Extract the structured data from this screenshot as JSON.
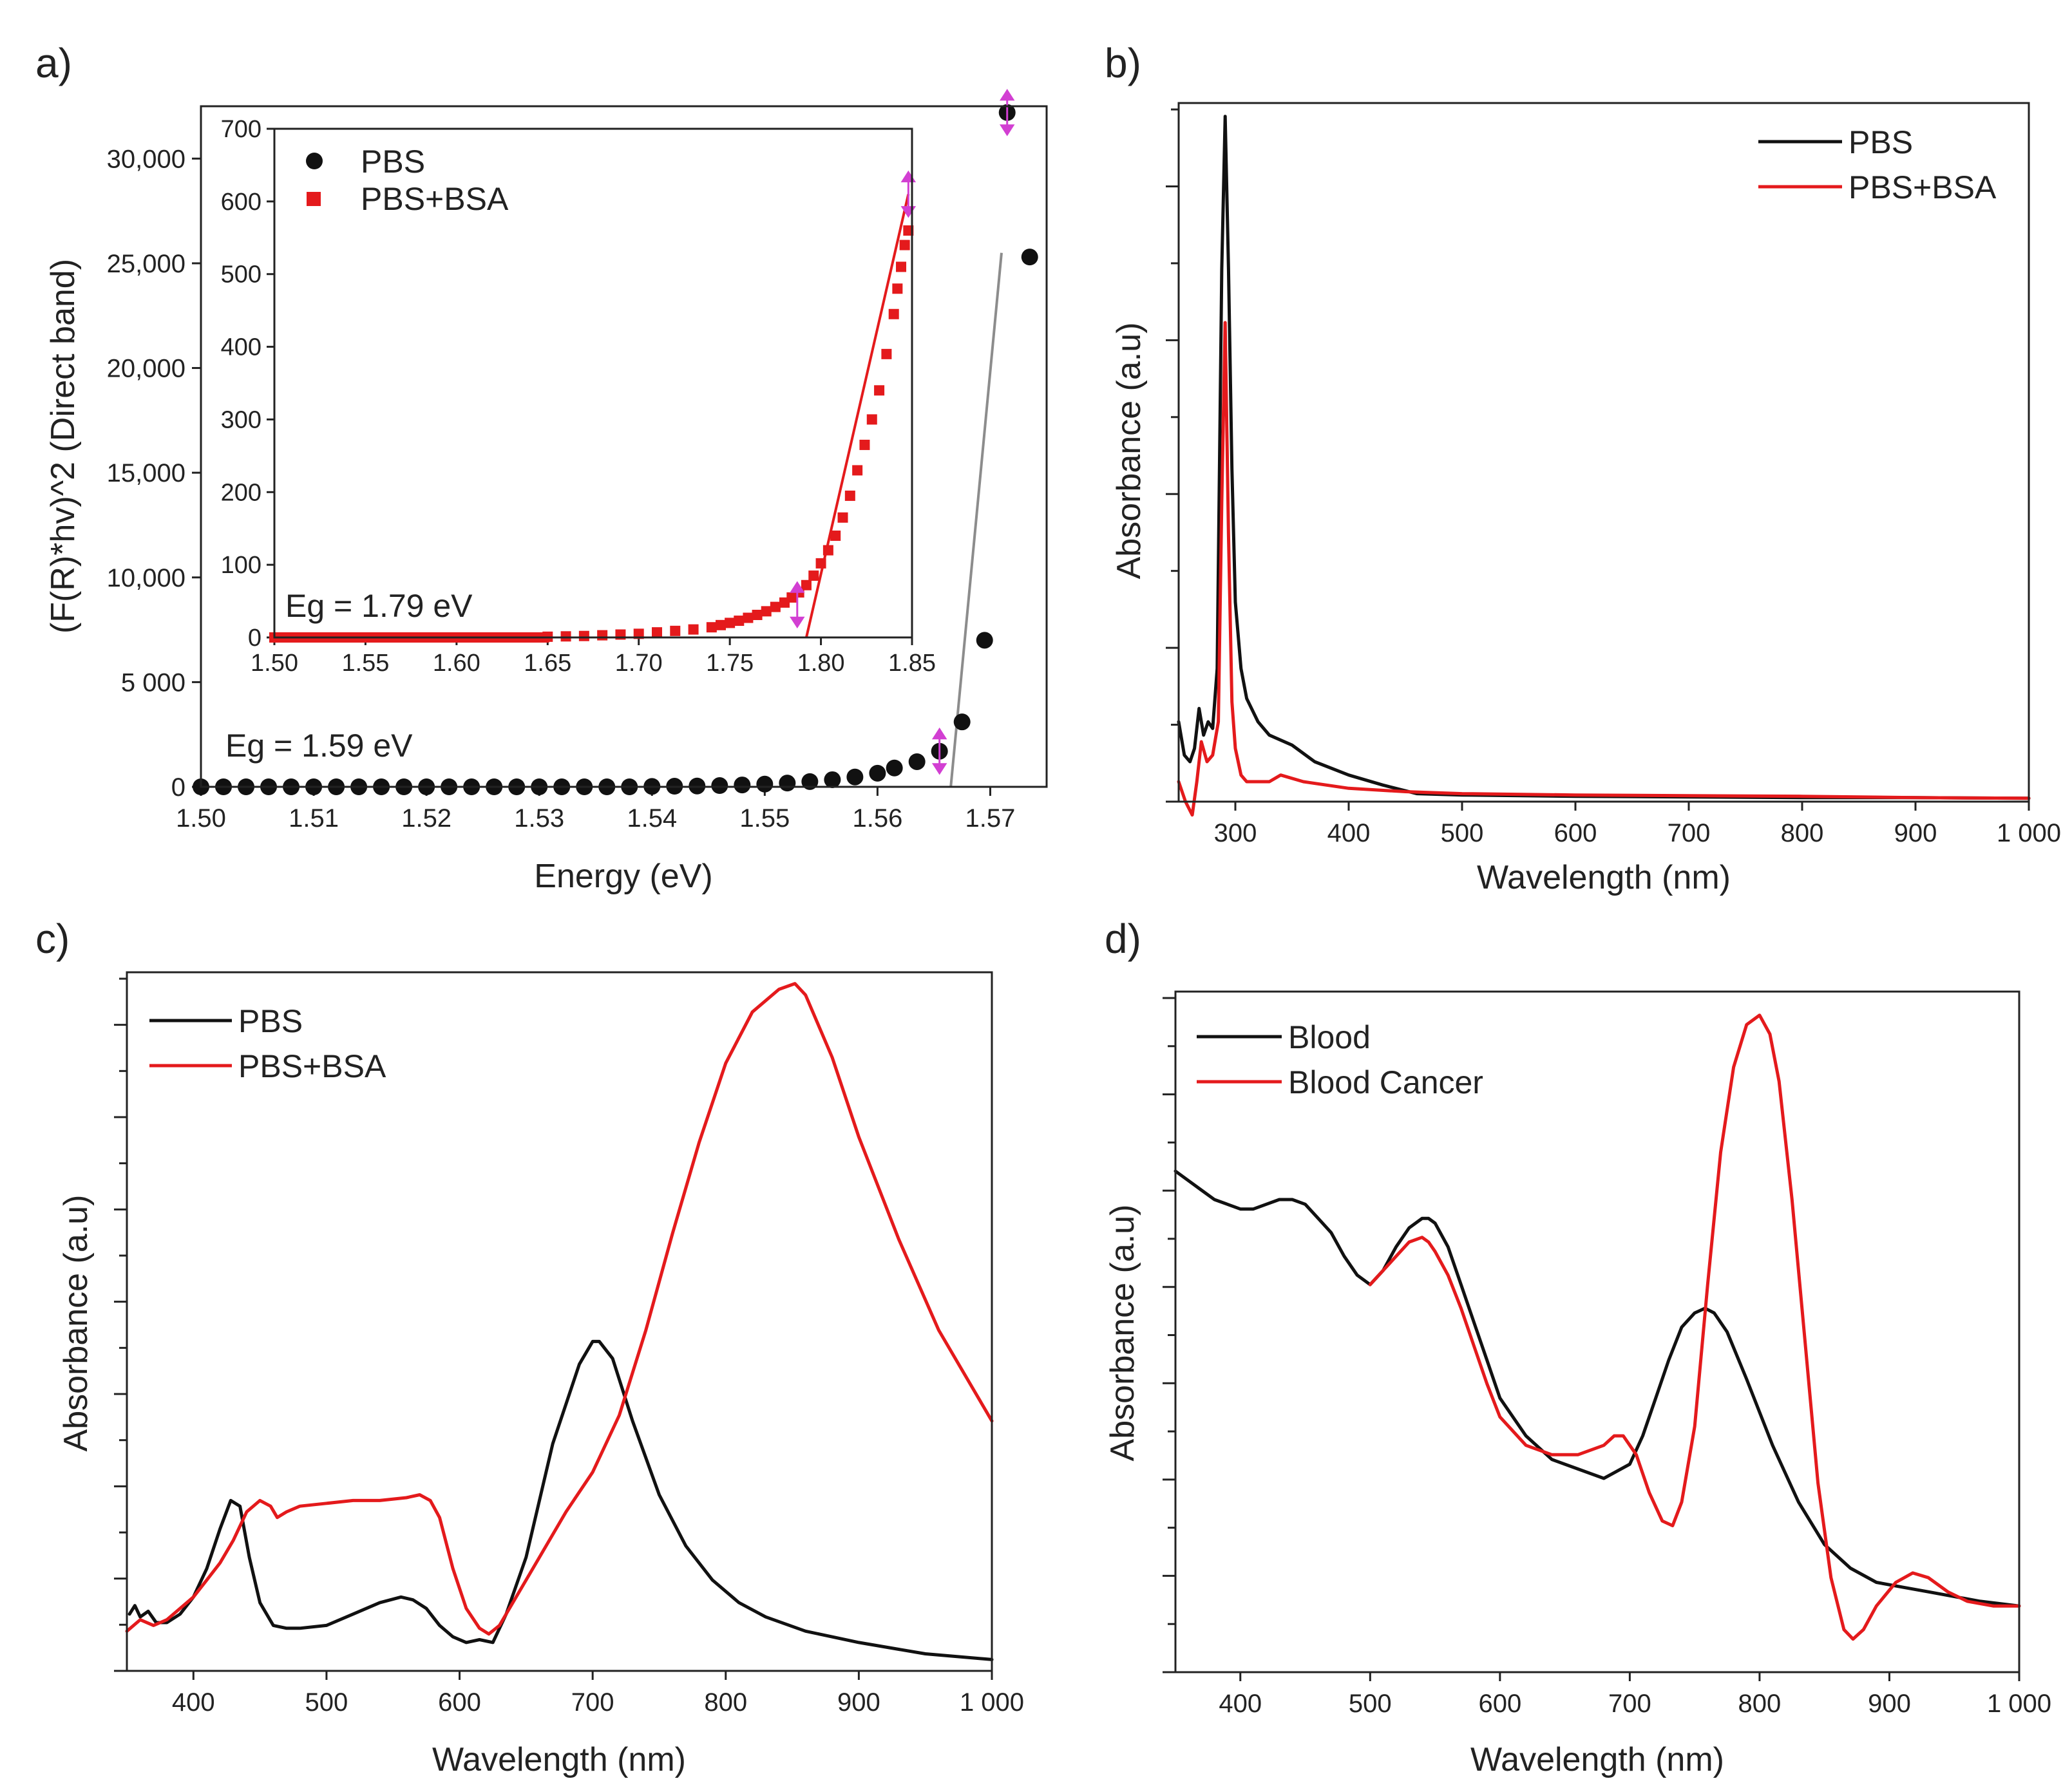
{
  "colors": {
    "black": "#111111",
    "red": "#e41a1c",
    "fit_gray": "#8c8c8c",
    "marker_magenta": "#d23fd2",
    "axis": "#222222"
  },
  "panels": [
    {
      "id": "a",
      "label": "a)",
      "type": "scatter",
      "xlabel": "Energy (eV)",
      "ylabel": "(F(R)*hv)^2 (Direct band)",
      "xlim": [
        1.5,
        1.575
      ],
      "ylim": [
        0,
        32500
      ],
      "xticks": [
        1.5,
        1.51,
        1.52,
        1.53,
        1.54,
        1.55,
        1.56,
        1.57
      ],
      "xtick_labels": [
        "1.50",
        "1.51",
        "1.52",
        "1.53",
        "1.54",
        "1.55",
        "1.56",
        "1.57"
      ],
      "yticks": [
        0,
        5000,
        10000,
        15000,
        20000,
        25000,
        30000
      ],
      "ytick_labels": [
        "0",
        "5 000",
        "10,000",
        "15,000",
        "20,000",
        "25,000",
        "30,000"
      ],
      "annotation": "Eg = 1.59 eV",
      "series": [
        {
          "name": "PBS",
          "color": "#111111",
          "x": [
            1.5,
            1.502,
            1.504,
            1.506,
            1.508,
            1.51,
            1.512,
            1.514,
            1.516,
            1.518,
            1.52,
            1.522,
            1.524,
            1.526,
            1.528,
            1.53,
            1.532,
            1.534,
            1.536,
            1.538,
            1.54,
            1.542,
            1.544,
            1.546,
            1.548,
            1.55,
            1.552,
            1.554,
            1.556,
            1.558,
            1.56,
            1.5615,
            1.5635,
            1.5655,
            1.5675,
            1.5695,
            1.5715,
            1.5735
          ],
          "y": [
            0,
            0,
            0,
            0,
            0,
            0,
            0,
            0,
            0,
            0,
            0,
            0,
            0,
            0,
            0,
            0,
            0,
            0,
            0,
            0,
            20,
            30,
            40,
            60,
            90,
            130,
            180,
            250,
            340,
            470,
            650,
            900,
            1200,
            1700,
            3100,
            7000,
            32200,
            25300
          ]
        }
      ],
      "fit_line": {
        "x": [
          1.5665,
          1.571
        ],
        "y": [
          0,
          25500
        ]
      },
      "markers": [
        {
          "x": 1.5655,
          "y": 1700
        },
        {
          "x": 1.5715,
          "y": 32200
        }
      ],
      "inset": {
        "xlim": [
          1.5,
          1.85
        ],
        "ylim": [
          0,
          700
        ],
        "xticks": [
          1.5,
          1.55,
          1.6,
          1.65,
          1.7,
          1.75,
          1.8,
          1.85
        ],
        "xtick_labels": [
          "1.50",
          "1.55",
          "1.60",
          "1.65",
          "1.70",
          "1.75",
          "1.80",
          "1.85"
        ],
        "yticks": [
          0,
          100,
          200,
          300,
          400,
          500,
          600,
          700
        ],
        "ytick_labels": [
          "0",
          "100",
          "200",
          "300",
          "400",
          "500",
          "600",
          "700"
        ],
        "annotation": "Eg = 1.79 eV",
        "legend": [
          {
            "name": "PBS",
            "color": "#111111",
            "marker": "circle"
          },
          {
            "name": "PBS+BSA",
            "color": "#e41a1c",
            "marker": "square"
          }
        ],
        "series": [
          {
            "name": "PBS+BSA",
            "color": "#e41a1c",
            "x": [
              1.65,
              1.66,
              1.67,
              1.68,
              1.69,
              1.7,
              1.71,
              1.72,
              1.73,
              1.74,
              1.745,
              1.75,
              1.755,
              1.76,
              1.765,
              1.77,
              1.775,
              1.78,
              1.784,
              1.788,
              1.792,
              1.796,
              1.8,
              1.804,
              1.808,
              1.812,
              1.816,
              1.82,
              1.824,
              1.828,
              1.832,
              1.836,
              1.84,
              1.842,
              1.844,
              1.846,
              1.848
            ],
            "y": [
              1,
              1.5,
              2,
              3,
              4,
              5,
              7,
              9,
              11,
              14,
              17,
              20,
              23,
              27,
              31,
              36,
              42,
              48,
              55,
              62,
              72,
              85,
              102,
              120,
              140,
              165,
              195,
              230,
              265,
              300,
              340,
              390,
              445,
              480,
              510,
              540,
              560
            ]
          }
        ],
        "fit_line": {
          "x": [
            1.792,
            1.848
          ],
          "y": [
            0,
            610
          ]
        },
        "markers": [
          {
            "x": 1.787,
            "y": 45
          },
          {
            "x": 1.848,
            "y": 610
          }
        ]
      }
    },
    {
      "id": "b",
      "label": "b)",
      "type": "line",
      "xlabel": "Wavelength (nm)",
      "ylabel": "Absorbance (a.u)",
      "xlim": [
        250,
        1000
      ],
      "ylim": [
        0,
        1.05
      ],
      "xticks": [
        300,
        400,
        500,
        600,
        700,
        800,
        900,
        1000
      ],
      "xtick_labels": [
        "300",
        "400",
        "500",
        "600",
        "700",
        "800",
        "900",
        "1 000"
      ],
      "ytick_count": 9,
      "legend_position": "top-right",
      "series": [
        {
          "name": "PBS",
          "color": "#111111",
          "x": [
            250,
            255,
            260,
            264,
            268,
            272,
            276,
            280,
            284,
            288,
            291,
            294,
            297,
            300,
            305,
            310,
            320,
            330,
            350,
            370,
            400,
            430,
            460,
            500,
            600,
            700,
            800,
            900,
            1000
          ],
          "y": [
            0.12,
            0.07,
            0.06,
            0.08,
            0.14,
            0.1,
            0.12,
            0.11,
            0.2,
            0.8,
            1.03,
            0.8,
            0.5,
            0.3,
            0.2,
            0.155,
            0.12,
            0.1,
            0.085,
            0.06,
            0.04,
            0.025,
            0.012,
            0.01,
            0.008,
            0.007,
            0.006,
            0.006,
            0.005
          ]
        },
        {
          "name": "PBS+BSA",
          "color": "#e41a1c",
          "x": [
            250,
            256,
            262,
            266,
            270,
            275,
            280,
            285,
            288,
            291,
            294,
            297,
            300,
            305,
            310,
            315,
            320,
            330,
            340,
            360,
            400,
            450,
            500,
            600,
            700,
            800,
            900,
            1000
          ],
          "y": [
            0.03,
            0.0,
            -0.02,
            0.03,
            0.09,
            0.06,
            0.07,
            0.12,
            0.45,
            0.72,
            0.4,
            0.15,
            0.08,
            0.04,
            0.03,
            0.03,
            0.03,
            0.03,
            0.04,
            0.03,
            0.02,
            0.015,
            0.012,
            0.01,
            0.009,
            0.008,
            0.006,
            0.005
          ]
        }
      ]
    },
    {
      "id": "c",
      "label": "c)",
      "type": "line",
      "xlabel": "Wavelength (nm)",
      "ylabel": "Absorbance (a.u)",
      "xlim": [
        350,
        1000
      ],
      "ylim": [
        0,
        1.23
      ],
      "xticks": [
        400,
        500,
        600,
        700,
        800,
        900,
        1000
      ],
      "xtick_labels": [
        "400",
        "500",
        "600",
        "700",
        "800",
        "900",
        "1 000"
      ],
      "ytick_count": 15,
      "legend_position": "top-left",
      "series": [
        {
          "name": "PBS",
          "color": "#111111",
          "x": [
            352,
            356,
            360,
            366,
            372,
            380,
            390,
            400,
            410,
            420,
            428,
            435,
            442,
            450,
            460,
            470,
            480,
            500,
            520,
            540,
            556,
            565,
            575,
            585,
            595,
            605,
            615,
            625,
            635,
            650,
            670,
            690,
            700,
            705,
            715,
            730,
            750,
            770,
            790,
            810,
            830,
            860,
            900,
            950,
            1000
          ],
          "y": [
            0.1,
            0.115,
            0.095,
            0.105,
            0.085,
            0.085,
            0.1,
            0.13,
            0.18,
            0.25,
            0.3,
            0.29,
            0.2,
            0.12,
            0.08,
            0.075,
            0.075,
            0.08,
            0.1,
            0.12,
            0.13,
            0.125,
            0.11,
            0.08,
            0.06,
            0.05,
            0.055,
            0.05,
            0.1,
            0.2,
            0.4,
            0.54,
            0.58,
            0.58,
            0.55,
            0.44,
            0.31,
            0.22,
            0.16,
            0.12,
            0.095,
            0.07,
            0.05,
            0.03,
            0.02
          ]
        },
        {
          "name": "PBS+BSA",
          "color": "#e41a1c",
          "x": [
            350,
            360,
            370,
            380,
            390,
            400,
            410,
            420,
            430,
            440,
            450,
            458,
            463,
            470,
            480,
            500,
            520,
            540,
            560,
            570,
            578,
            585,
            595,
            605,
            615,
            622,
            630,
            640,
            660,
            680,
            700,
            720,
            740,
            760,
            780,
            800,
            820,
            840,
            852,
            860,
            880,
            900,
            930,
            960,
            1000
          ],
          "y": [
            0.07,
            0.09,
            0.08,
            0.09,
            0.11,
            0.13,
            0.16,
            0.19,
            0.23,
            0.28,
            0.3,
            0.29,
            0.27,
            0.28,
            0.29,
            0.295,
            0.3,
            0.3,
            0.305,
            0.31,
            0.3,
            0.27,
            0.18,
            0.11,
            0.075,
            0.065,
            0.08,
            0.12,
            0.2,
            0.28,
            0.35,
            0.45,
            0.6,
            0.77,
            0.93,
            1.07,
            1.16,
            1.2,
            1.21,
            1.19,
            1.08,
            0.94,
            0.76,
            0.6,
            0.44
          ]
        }
      ]
    },
    {
      "id": "d",
      "label": "d)",
      "type": "line",
      "xlabel": "Wavelength (nm)",
      "ylabel": "Absorbance (a.u)",
      "xlim": [
        350,
        1000
      ],
      "ylim": [
        0,
        1.44
      ],
      "xticks": [
        400,
        500,
        600,
        700,
        800,
        900,
        1000
      ],
      "xtick_labels": [
        "400",
        "500",
        "600",
        "700",
        "800",
        "900",
        "1 000"
      ],
      "ytick_count": 7,
      "legend_position": "top-left",
      "series": [
        {
          "name": "Blood",
          "color": "#111111",
          "x": [
            350,
            360,
            370,
            380,
            390,
            400,
            410,
            420,
            430,
            440,
            450,
            460,
            470,
            480,
            490,
            500,
            510,
            520,
            530,
            540,
            545,
            550,
            560,
            570,
            580,
            590,
            600,
            620,
            640,
            660,
            680,
            700,
            710,
            720,
            730,
            740,
            750,
            758,
            765,
            775,
            790,
            810,
            830,
            850,
            870,
            890,
            910,
            930,
            950,
            970,
            1000
          ],
          "y": [
            1.06,
            1.04,
            1.02,
            1.0,
            0.99,
            0.98,
            0.98,
            0.99,
            1.0,
            1.0,
            0.99,
            0.96,
            0.93,
            0.88,
            0.84,
            0.82,
            0.85,
            0.9,
            0.94,
            0.96,
            0.96,
            0.95,
            0.9,
            0.82,
            0.74,
            0.66,
            0.58,
            0.5,
            0.45,
            0.43,
            0.41,
            0.44,
            0.5,
            0.58,
            0.66,
            0.73,
            0.76,
            0.77,
            0.76,
            0.72,
            0.62,
            0.48,
            0.36,
            0.27,
            0.22,
            0.19,
            0.18,
            0.17,
            0.16,
            0.15,
            0.14
          ]
        },
        {
          "name": "Blood Cancer",
          "color": "#e41a1c",
          "x": [
            500,
            510,
            520,
            530,
            540,
            545,
            550,
            560,
            570,
            580,
            590,
            600,
            620,
            640,
            660,
            680,
            688,
            695,
            705,
            715,
            725,
            733,
            740,
            750,
            760,
            770,
            780,
            790,
            800,
            808,
            815,
            825,
            835,
            845,
            855,
            865,
            872,
            880,
            890,
            905,
            918,
            930,
            945,
            960,
            980,
            1000
          ],
          "y": [
            0.82,
            0.85,
            0.88,
            0.91,
            0.92,
            0.91,
            0.89,
            0.84,
            0.77,
            0.69,
            0.61,
            0.54,
            0.48,
            0.46,
            0.46,
            0.48,
            0.5,
            0.5,
            0.46,
            0.38,
            0.32,
            0.31,
            0.36,
            0.52,
            0.82,
            1.1,
            1.28,
            1.37,
            1.39,
            1.35,
            1.25,
            1.0,
            0.7,
            0.4,
            0.2,
            0.09,
            0.07,
            0.09,
            0.14,
            0.19,
            0.21,
            0.2,
            0.17,
            0.15,
            0.14,
            0.14
          ]
        }
      ]
    }
  ],
  "chart_data": [
    {
      "type": "scatter",
      "panel": "a)",
      "title": "",
      "xlabel": "Energy (eV)",
      "ylabel": "(F(R)*hv)^2 (Direct band)",
      "xlim": [
        1.5,
        1.575
      ],
      "ylim": [
        0,
        32500
      ],
      "annotations": [
        "Eg = 1.59 eV",
        "Eg = 1.79 eV (inset)"
      ],
      "legend": [
        "PBS",
        "PBS+BSA"
      ]
    },
    {
      "type": "line",
      "panel": "b)",
      "xlabel": "Wavelength (nm)",
      "ylabel": "Absorbance (a.u)",
      "xlim": [
        250,
        1000
      ],
      "legend": [
        "PBS",
        "PBS+BSA"
      ]
    },
    {
      "type": "line",
      "panel": "c)",
      "xlabel": "Wavelength (nm)",
      "ylabel": "Absorbance (a.u)",
      "xlim": [
        350,
        1000
      ],
      "legend": [
        "PBS",
        "PBS+BSA"
      ]
    },
    {
      "type": "line",
      "panel": "d)",
      "xlabel": "Wavelength (nm)",
      "ylabel": "Absorbance (a.u)",
      "xlim": [
        350,
        1000
      ],
      "legend": [
        "Blood",
        "Blood Cancer"
      ]
    }
  ]
}
